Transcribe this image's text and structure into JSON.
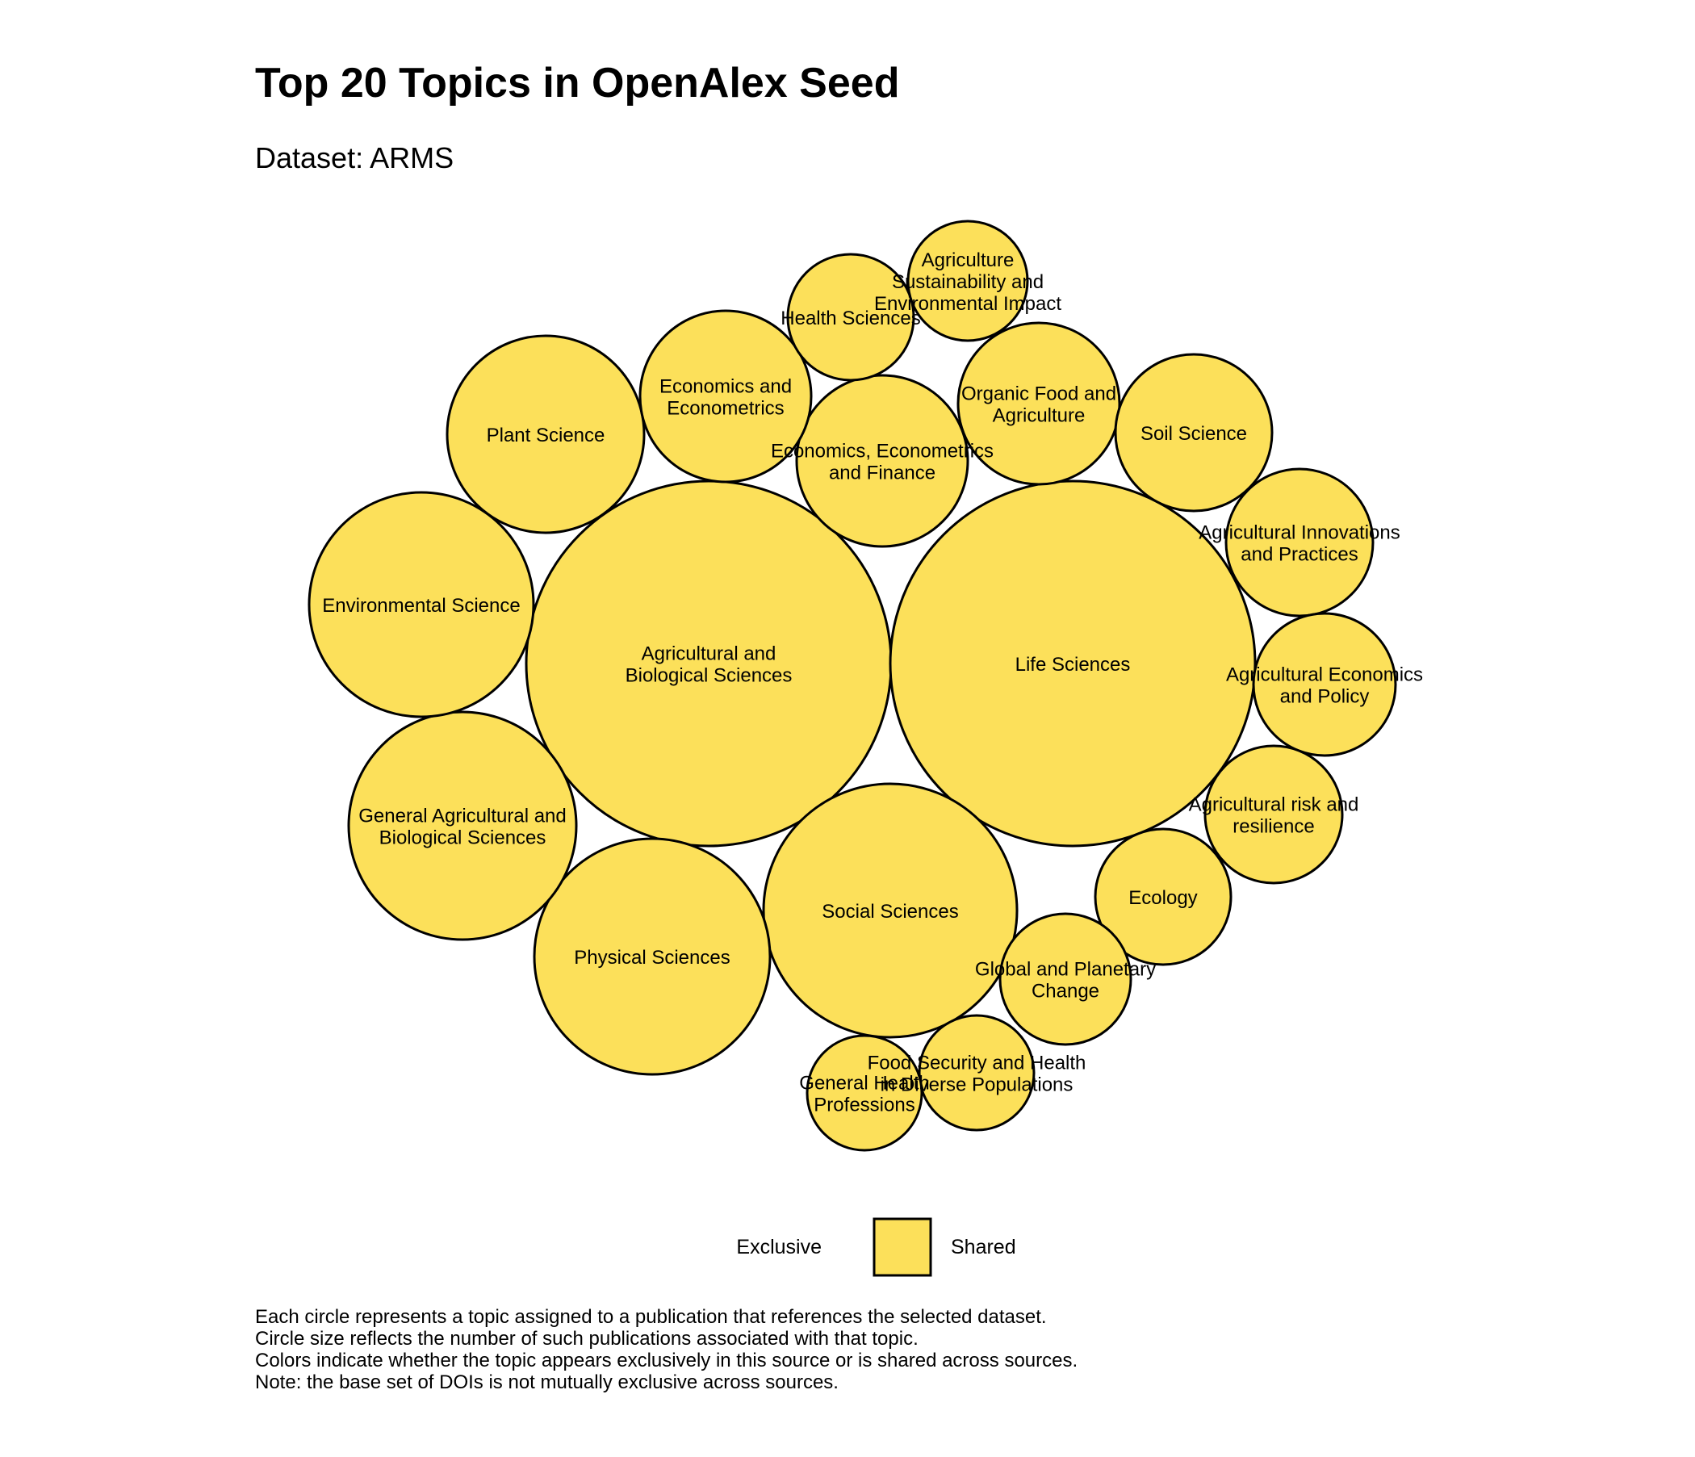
{
  "chart_data": {
    "type": "packed-bubble",
    "title": "Top 20 Topics in OpenAlex Seed",
    "subtitle": "Dataset: ARMS",
    "colors": {
      "shared": "#FCE05A",
      "stroke": "#000000"
    },
    "legend": {
      "position": "bottom",
      "left_label": "Exclusive",
      "right_label": "Shared",
      "swatch_color": "#FCE05A"
    },
    "bubbles": [
      {
        "label": "Agricultural and Biological Sciences",
        "lines": [
          "Agricultural and",
          "Biological Sciences"
        ],
        "status": "Shared"
      },
      {
        "label": "Life Sciences",
        "lines": [
          "Life Sciences"
        ],
        "status": "Shared"
      },
      {
        "label": "Social Sciences",
        "lines": [
          "Social Sciences"
        ],
        "status": "Shared"
      },
      {
        "label": "Physical Sciences",
        "lines": [
          "Physical Sciences"
        ],
        "status": "Shared"
      },
      {
        "label": "General Agricultural and Biological Sciences",
        "lines": [
          "General Agricultural and",
          "Biological Sciences"
        ],
        "status": "Shared"
      },
      {
        "label": "Environmental Science",
        "lines": [
          "Environmental Science"
        ],
        "status": "Shared"
      },
      {
        "label": "Plant Science",
        "lines": [
          "Plant Science"
        ],
        "status": "Shared"
      },
      {
        "label": "Economics, Econometrics and Finance",
        "lines": [
          "Economics, Econometrics",
          "and Finance"
        ],
        "status": "Shared"
      },
      {
        "label": "Economics and Econometrics",
        "lines": [
          "Economics and",
          "Econometrics"
        ],
        "status": "Shared"
      },
      {
        "label": "Organic Food and Agriculture",
        "lines": [
          "Organic Food and",
          "Agriculture"
        ],
        "status": "Shared"
      },
      {
        "label": "Soil Science",
        "lines": [
          "Soil Science"
        ],
        "status": "Shared"
      },
      {
        "label": "Agricultural Innovations and Practices",
        "lines": [
          "Agricultural Innovations",
          "and Practices"
        ],
        "status": "Shared"
      },
      {
        "label": "Agricultural Economics and Policy",
        "lines": [
          "Agricultural Economics",
          "and Policy"
        ],
        "status": "Shared"
      },
      {
        "label": "Agricultural risk and resilience",
        "lines": [
          "Agricultural risk and",
          "resilience"
        ],
        "status": "Shared"
      },
      {
        "label": "Ecology",
        "lines": [
          "Ecology"
        ],
        "status": "Shared"
      },
      {
        "label": "Global and Planetary Change",
        "lines": [
          "Global and Planetary",
          "Change"
        ],
        "status": "Shared"
      },
      {
        "label": "Food Security and Health in Diverse Populations",
        "lines": [
          "Food Security and Health",
          "in Diverse Populations"
        ],
        "status": "Shared"
      },
      {
        "label": "General Health Professions",
        "lines": [
          "General Health",
          "Professions"
        ],
        "status": "Shared"
      },
      {
        "label": "Health Sciences",
        "lines": [
          "Health Sciences"
        ],
        "status": "Shared"
      },
      {
        "label": "Agriculture Sustainability and Environmental Impact",
        "lines": [
          "Agriculture",
          "Sustainability and",
          "Environmental Impact"
        ],
        "status": "Shared"
      }
    ],
    "caption": [
      "Each circle represents a topic assigned to a publication that references the selected dataset.",
      "Circle size reflects the number of such publications associated with that topic.",
      "Colors indicate whether the topic appears exclusively in this source or is shared across sources.",
      "Note: the base set of DOIs is not mutually exclusive across sources."
    ]
  }
}
